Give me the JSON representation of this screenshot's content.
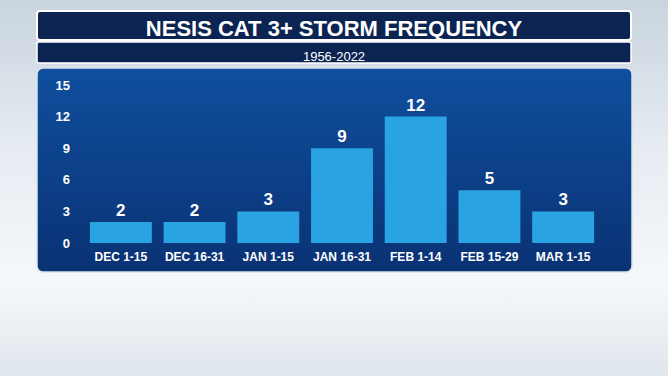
{
  "chart_data": {
    "type": "bar",
    "title": "NESIS CAT 3+ STORM FREQUENCY",
    "subtitle": "1956-2022",
    "categories": [
      "DEC 1-15",
      "DEC 16-31",
      "JAN 1-15",
      "JAN 16-31",
      "FEB 1-14",
      "FEB 15-29",
      "MAR 1-15"
    ],
    "values": [
      2,
      2,
      3,
      9,
      12,
      5,
      3
    ],
    "color": "#2aa3e3",
    "ylim": [
      0,
      15
    ],
    "yticks": [
      0,
      3,
      6,
      9,
      12,
      15
    ],
    "grid": false,
    "data_labels": true
  }
}
